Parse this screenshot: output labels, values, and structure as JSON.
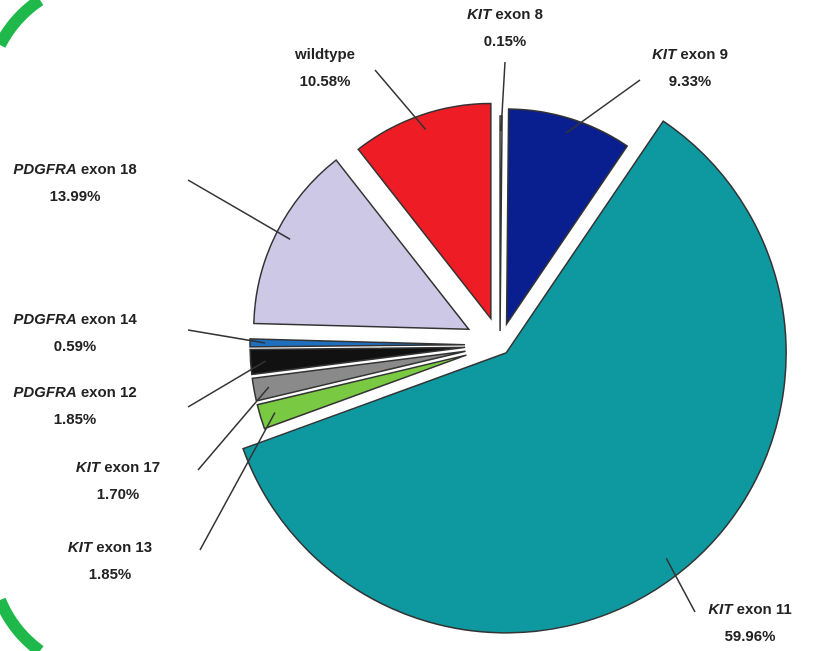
{
  "chart_data": {
    "type": "pie",
    "categories": [
      "KIT exon 8",
      "KIT exon 9",
      "KIT exon 11",
      "KIT exon 13",
      "KIT exon 17",
      "PDGFRA exon 12",
      "PDGFRA exon 14",
      "PDGFRA exon 18",
      "wildtype"
    ],
    "values": [
      0.15,
      9.33,
      59.96,
      1.85,
      1.7,
      1.85,
      0.59,
      13.99,
      10.58
    ],
    "value_labels": [
      "0.15%",
      "9.33%",
      "59.96%",
      "1.85%",
      "1.70%",
      "1.85%",
      "0.59%",
      "13.99%",
      "10.58%"
    ],
    "colors": [
      "#ffffff",
      "#0a1f8f",
      "#0e98a0",
      "#7ac943",
      "#8a8a8a",
      "#111111",
      "#1f6fbf",
      "#ccc8e6",
      "#ee1c24"
    ]
  }
}
